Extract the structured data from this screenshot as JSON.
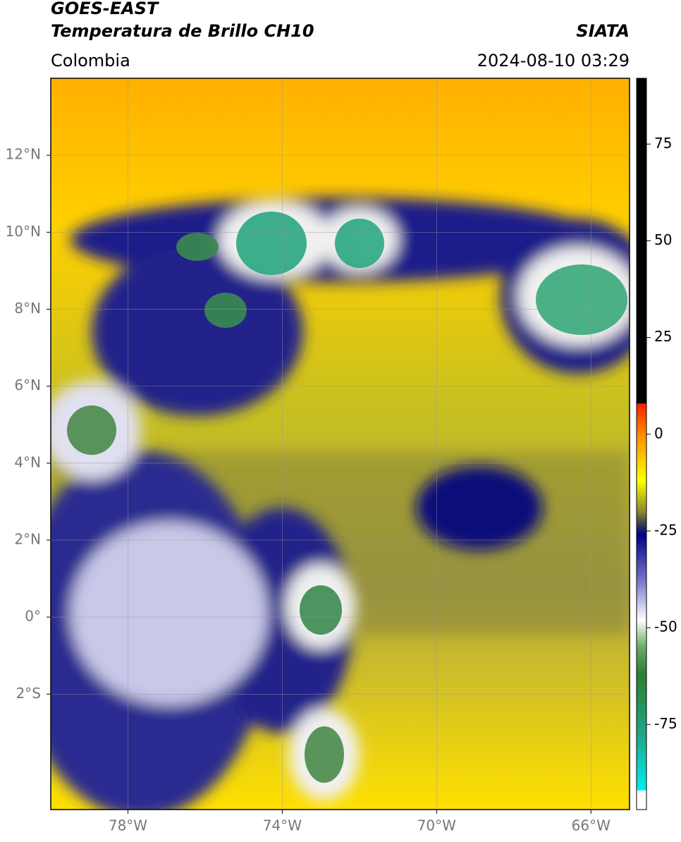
{
  "header": {
    "title": "GOES-EAST",
    "subtitle": "Temperatura de Brillo CH10",
    "source": "SIATA",
    "region": "Colombia",
    "datetime": "2024-08-10 03:29"
  },
  "map": {
    "xlim": [
      -80,
      -65
    ],
    "ylim": [
      -5,
      14
    ],
    "xticks": [
      {
        "value": -78,
        "label": "78°W"
      },
      {
        "value": -74,
        "label": "74°W"
      },
      {
        "value": -70,
        "label": "70°W"
      },
      {
        "value": -66,
        "label": "66°W"
      }
    ],
    "yticks": [
      {
        "value": 12,
        "label": "12°N"
      },
      {
        "value": 10,
        "label": "10°N"
      },
      {
        "value": 8,
        "label": "8°N"
      },
      {
        "value": 6,
        "label": "6°N"
      },
      {
        "value": 4,
        "label": "4°N"
      },
      {
        "value": 2,
        "label": "2°N"
      },
      {
        "value": 0,
        "label": "0°"
      },
      {
        "value": -2,
        "label": "2°S"
      }
    ]
  },
  "colorbar": {
    "ylim": [
      -97,
      92
    ],
    "yticks": [
      75,
      50,
      25,
      0,
      -25,
      -50,
      -75
    ],
    "stops": [
      {
        "value": 92,
        "color": "#000000"
      },
      {
        "value": 8,
        "color": "#000000"
      },
      {
        "value": 7.9,
        "color": "#ff1a00"
      },
      {
        "value": 0,
        "color": "#ff8a00"
      },
      {
        "value": -12,
        "color": "#ffff00"
      },
      {
        "value": -20,
        "color": "#8a8a2a"
      },
      {
        "value": -23,
        "color": "#404050"
      },
      {
        "value": -26,
        "color": "#00008a"
      },
      {
        "value": -38,
        "color": "#7878c8"
      },
      {
        "value": -48,
        "color": "#ffffff"
      },
      {
        "value": -55,
        "color": "#6aaa6a"
      },
      {
        "value": -62,
        "color": "#2e7e2e"
      },
      {
        "value": -78,
        "color": "#1ea88a"
      },
      {
        "value": -92,
        "color": "#00f0f0"
      },
      {
        "value": -92.1,
        "color": "#ffffff"
      },
      {
        "value": -97,
        "color": "#ffffff"
      }
    ]
  }
}
